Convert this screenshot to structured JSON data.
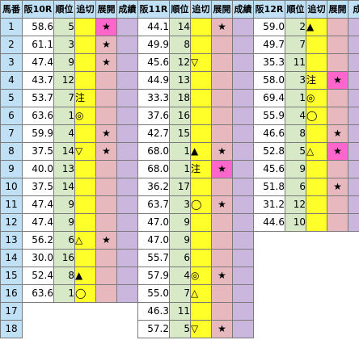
{
  "headers": [
    "馬番",
    "阪10R",
    "順位",
    "追切",
    "展開",
    "成績",
    "阪11R",
    "順位",
    "追切",
    "展開",
    "成績",
    "阪12R",
    "順位",
    "追切",
    "展開",
    "成績"
  ],
  "rows": [
    {
      "num": "1",
      "r10": {
        "idx": "58.6",
        "rank": "5",
        "mark": "",
        "dev": "★",
        "hl": true
      },
      "r11": {
        "idx": "44.1",
        "rank": "14",
        "mark": "",
        "dev": "★",
        "hl": false
      },
      "r12": {
        "idx": "59.0",
        "rank": "2",
        "mark": "▲",
        "dev": "",
        "hl": false
      }
    },
    {
      "num": "2",
      "r10": {
        "idx": "61.1",
        "rank": "3",
        "mark": "",
        "dev": "★",
        "hl": false
      },
      "r11": {
        "idx": "49.9",
        "rank": "8",
        "mark": "",
        "dev": "",
        "hl": false
      },
      "r12": {
        "idx": "49.7",
        "rank": "7",
        "mark": "",
        "dev": "",
        "hl": false
      }
    },
    {
      "num": "3",
      "r10": {
        "idx": "47.4",
        "rank": "9",
        "mark": "",
        "dev": "★",
        "hl": false
      },
      "r11": {
        "idx": "45.6",
        "rank": "12",
        "mark": "▽",
        "dev": "",
        "hl": false
      },
      "r12": {
        "idx": "35.3",
        "rank": "11",
        "mark": "",
        "dev": "",
        "hl": false
      }
    },
    {
      "num": "4",
      "r10": {
        "idx": "43.7",
        "rank": "12",
        "mark": "",
        "dev": "",
        "hl": false
      },
      "r11": {
        "idx": "44.9",
        "rank": "13",
        "mark": "",
        "dev": "",
        "hl": false
      },
      "r12": {
        "idx": "58.0",
        "rank": "3",
        "mark": "注",
        "dev": "★",
        "hl": true
      }
    },
    {
      "num": "5",
      "r10": {
        "idx": "53.7",
        "rank": "7",
        "mark": "注",
        "dev": "",
        "hl": false
      },
      "r11": {
        "idx": "33.3",
        "rank": "18",
        "mark": "",
        "dev": "",
        "hl": false
      },
      "r12": {
        "idx": "69.4",
        "rank": "1",
        "mark": "◎",
        "dev": "",
        "hl": false
      }
    },
    {
      "num": "6",
      "r10": {
        "idx": "63.6",
        "rank": "1",
        "mark": "◎",
        "dev": "",
        "hl": false
      },
      "r11": {
        "idx": "37.6",
        "rank": "16",
        "mark": "",
        "dev": "",
        "hl": false
      },
      "r12": {
        "idx": "55.9",
        "rank": "4",
        "mark": "◯",
        "dev": "",
        "hl": false
      }
    },
    {
      "num": "7",
      "r10": {
        "idx": "59.9",
        "rank": "4",
        "mark": "",
        "dev": "★",
        "hl": false
      },
      "r11": {
        "idx": "42.7",
        "rank": "15",
        "mark": "",
        "dev": "",
        "hl": false
      },
      "r12": {
        "idx": "46.6",
        "rank": "8",
        "mark": "",
        "dev": "★",
        "hl": false
      }
    },
    {
      "num": "8",
      "r10": {
        "idx": "37.5",
        "rank": "14",
        "mark": "▽",
        "dev": "★",
        "hl": false
      },
      "r11": {
        "idx": "68.0",
        "rank": "1",
        "mark": "▲",
        "dev": "★",
        "hl": false
      },
      "r12": {
        "idx": "52.8",
        "rank": "5",
        "mark": "△",
        "dev": "★",
        "hl": true
      }
    },
    {
      "num": "9",
      "r10": {
        "idx": "40.0",
        "rank": "13",
        "mark": "",
        "dev": "",
        "hl": false
      },
      "r11": {
        "idx": "68.0",
        "rank": "1",
        "mark": "注",
        "dev": "★",
        "hl": true
      },
      "r12": {
        "idx": "45.6",
        "rank": "9",
        "mark": "",
        "dev": "",
        "hl": false
      }
    },
    {
      "num": "10",
      "r10": {
        "idx": "37.5",
        "rank": "14",
        "mark": "",
        "dev": "",
        "hl": false
      },
      "r11": {
        "idx": "36.2",
        "rank": "17",
        "mark": "",
        "dev": "",
        "hl": false
      },
      "r12": {
        "idx": "51.8",
        "rank": "6",
        "mark": "",
        "dev": "★",
        "hl": false
      }
    },
    {
      "num": "11",
      "r10": {
        "idx": "47.4",
        "rank": "9",
        "mark": "",
        "dev": "",
        "hl": false
      },
      "r11": {
        "idx": "63.7",
        "rank": "3",
        "mark": "◯",
        "dev": "★",
        "hl": false
      },
      "r12": {
        "idx": "31.2",
        "rank": "12",
        "mark": "",
        "dev": "",
        "hl": false
      }
    },
    {
      "num": "12",
      "r10": {
        "idx": "47.4",
        "rank": "9",
        "mark": "",
        "dev": "",
        "hl": false
      },
      "r11": {
        "idx": "47.0",
        "rank": "9",
        "mark": "",
        "dev": "",
        "hl": false
      },
      "r12": {
        "idx": "44.6",
        "rank": "10",
        "mark": "",
        "dev": "",
        "hl": false
      }
    },
    {
      "num": "13",
      "r10": {
        "idx": "56.2",
        "rank": "6",
        "mark": "△",
        "dev": "★",
        "hl": false
      },
      "r11": {
        "idx": "47.0",
        "rank": "9",
        "mark": "",
        "dev": "",
        "hl": false
      },
      "r12": null
    },
    {
      "num": "14",
      "r10": {
        "idx": "30.0",
        "rank": "16",
        "mark": "",
        "dev": "",
        "hl": false
      },
      "r11": {
        "idx": "55.7",
        "rank": "6",
        "mark": "",
        "dev": "",
        "hl": false
      },
      "r12": null
    },
    {
      "num": "15",
      "r10": {
        "idx": "52.4",
        "rank": "8",
        "mark": "▲",
        "dev": "",
        "hl": false
      },
      "r11": {
        "idx": "57.9",
        "rank": "4",
        "mark": "◎",
        "dev": "★",
        "hl": false
      },
      "r12": null
    },
    {
      "num": "16",
      "r10": {
        "idx": "63.6",
        "rank": "1",
        "mark": "◯",
        "dev": "",
        "hl": false
      },
      "r11": {
        "idx": "55.0",
        "rank": "7",
        "mark": "△",
        "dev": "",
        "hl": false
      },
      "r12": null
    },
    {
      "num": "17",
      "r10": null,
      "r11": {
        "idx": "46.3",
        "rank": "11",
        "mark": "",
        "dev": "",
        "hl": false
      },
      "r12": null
    },
    {
      "num": "18",
      "r10": null,
      "r11": {
        "idx": "57.2",
        "rank": "5",
        "mark": "▽",
        "dev": "★",
        "hl": false
      },
      "r12": null
    }
  ]
}
